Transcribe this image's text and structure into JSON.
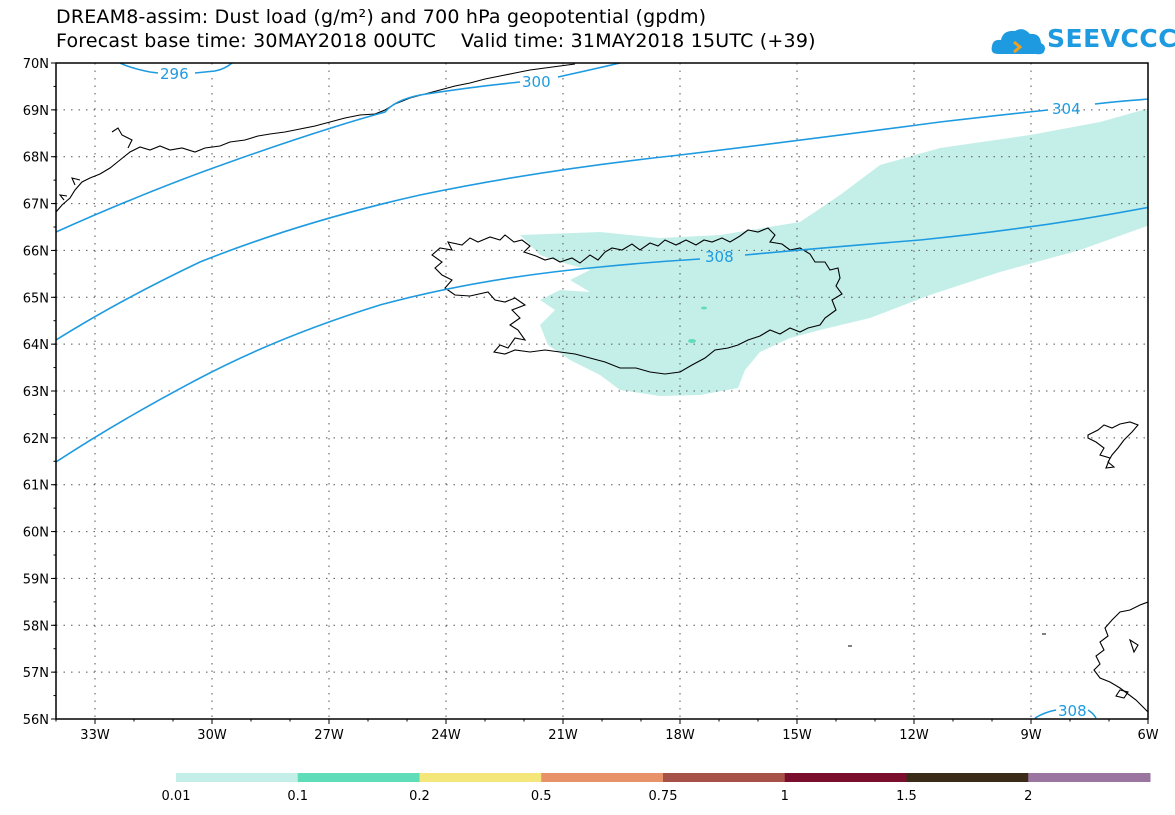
{
  "title": {
    "line1": "DREAM8-assim: Dust load (g/m²) and 700 hPa geopotential (gpdm)",
    "line2": "Forecast base time: 30MAY2018 00UTC    Valid time: 31MAY2018 15UTC (+39)"
  },
  "logo": {
    "text": "SEEVCCC",
    "color": "#1e9be0"
  },
  "map": {
    "lon_range": [
      -34,
      -6
    ],
    "lat_range": [
      56,
      70
    ],
    "lat_ticks": [
      "70N",
      "69N",
      "68N",
      "67N",
      "66N",
      "65N",
      "64N",
      "63N",
      "62N",
      "61N",
      "60N",
      "59N",
      "58N",
      "57N",
      "56N"
    ],
    "lon_ticks": [
      "33W",
      "30W",
      "27W",
      "24W",
      "21W",
      "18W",
      "15W",
      "12W",
      "9W",
      "6W"
    ],
    "contour_labels": [
      "296",
      "300",
      "304",
      "308",
      "308"
    ],
    "contour_color": "#1e9be0",
    "dust_color": "#c4efe9"
  },
  "colorbar": {
    "labels": [
      "0.01",
      "0.1",
      "0.2",
      "0.5",
      "0.75",
      "1",
      "1.5",
      "2"
    ],
    "colors": [
      "#c4efe9",
      "#5fdcb8",
      "#f5e67a",
      "#e8926a",
      "#a65248",
      "#7a0e2c",
      "#3a2a18",
      "#9a75a0"
    ]
  }
}
